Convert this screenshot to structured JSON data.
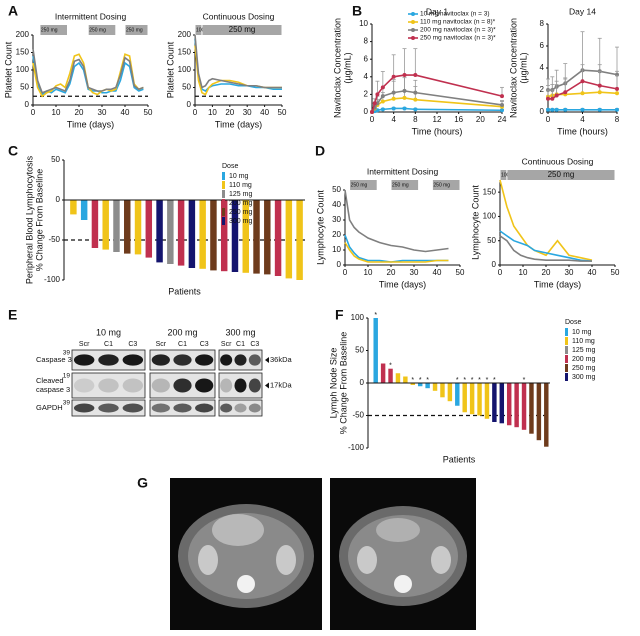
{
  "chart_data": [
    {
      "type": "line",
      "panel": "A",
      "title": "Intermittent Dosing",
      "y_label": "Platelet Count",
      "x_label": "Time (days)",
      "dose_bars": [
        {
          "label": "250 mg",
          "start": 3,
          "end": 15
        },
        {
          "label": "250 mg",
          "start": 24,
          "end": 36
        },
        {
          "label": "250 mg",
          "start": 40,
          "end": 50
        }
      ],
      "x": [
        0,
        2,
        4,
        6,
        8,
        10,
        12,
        14,
        16,
        18,
        20,
        22,
        24,
        26,
        28,
        30,
        32,
        34,
        36,
        38,
        40,
        42,
        44,
        46,
        48
      ],
      "series": [
        {
          "color": "#2aa7e0",
          "values": [
            140,
            60,
            30,
            40,
            35,
            45,
            40,
            35,
            60,
            110,
            120,
            100,
            45,
            40,
            40,
            35,
            35,
            40,
            40,
            70,
            120,
            110,
            50,
            40,
            45
          ]
        },
        {
          "color": "#f0c419",
          "values": [
            120,
            50,
            25,
            35,
            40,
            55,
            60,
            50,
            90,
            140,
            145,
            120,
            50,
            35,
            30,
            40,
            45,
            40,
            45,
            95,
            145,
            140,
            60,
            45,
            50
          ]
        },
        {
          "color": "#7f7f7f",
          "values": [
            160,
            70,
            35,
            40,
            45,
            50,
            45,
            40,
            70,
            125,
            130,
            110,
            50,
            45,
            40,
            40,
            45,
            45,
            50,
            85,
            135,
            125,
            55,
            45,
            50
          ]
        }
      ],
      "xlim": [
        0,
        50
      ],
      "xticks": [
        0,
        10,
        20,
        30,
        40,
        50
      ],
      "ylim": [
        0,
        200
      ],
      "yticks": [
        0,
        50,
        100,
        150,
        200
      ],
      "threshold": 25
    },
    {
      "type": "line",
      "title": "Continuous Dosing",
      "y_label": "Platelet Count",
      "x_label": "Time (days)",
      "dose_bars": [
        {
          "label": "100 mg",
          "start": 0,
          "end": 4
        },
        {
          "label": "250 mg",
          "start": 4,
          "end": 50
        }
      ],
      "x": [
        0,
        2,
        4,
        6,
        8,
        10,
        15,
        20,
        25,
        30,
        35,
        40,
        45,
        50
      ],
      "series": [
        {
          "color": "#2aa7e0",
          "values": [
            190,
            80,
            45,
            40,
            50,
            55,
            60,
            60,
            55,
            55,
            50,
            50,
            45,
            45
          ]
        },
        {
          "color": "#f0c419",
          "values": [
            170,
            70,
            35,
            30,
            50,
            60,
            70,
            70,
            65,
            55,
            55,
            50,
            50,
            50
          ]
        },
        {
          "color": "#7f7f7f",
          "values": [
            200,
            90,
            50,
            55,
            70,
            75,
            70,
            65,
            60,
            55,
            55,
            50,
            50,
            50
          ]
        }
      ],
      "xlim": [
        0,
        50
      ],
      "xticks": [
        0,
        10,
        20,
        30,
        40,
        50
      ],
      "ylim": [
        0,
        200
      ],
      "yticks": [
        0,
        50,
        100,
        150,
        200
      ],
      "threshold": 25
    },
    {
      "type": "line",
      "panel": "B",
      "title": "Day 1",
      "y_label": [
        "Navitoclax Concentration",
        "(µg/mL)"
      ],
      "x_label": "Time (hours)",
      "markers": true,
      "legend": "upper right",
      "x": [
        0,
        0.5,
        1,
        2,
        4,
        6,
        8,
        24
      ],
      "series": [
        {
          "name": "10 mg navitoclax (n = 3)",
          "color": "#2aa7e0",
          "values": [
            0,
            0.1,
            0.2,
            0.3,
            0.4,
            0.4,
            0.3,
            0.2
          ],
          "errors": [
            0,
            0.05,
            0.1,
            0.1,
            0.1,
            0.1,
            0.1,
            0.1
          ]
        },
        {
          "name": "110 mg navitoclax (n = 8)*",
          "color": "#f0c419",
          "values": [
            0,
            0.4,
            0.8,
            1.2,
            1.5,
            1.6,
            1.4,
            0.6
          ],
          "errors": [
            0,
            0.3,
            0.6,
            1,
            2,
            2.5,
            1.5,
            0.6
          ]
        },
        {
          "name": "200 mg navitoclax (n = 3)*",
          "color": "#808080",
          "values": [
            0,
            0.5,
            1,
            1.8,
            2.2,
            2.4,
            2.2,
            0.8
          ],
          "errors": [
            0,
            0.3,
            0.8,
            1,
            1.5,
            1.5,
            1.4,
            0.5
          ]
        },
        {
          "name": "250 mg navitoclax (n = 3)*",
          "color": "#c0304f",
          "values": [
            0,
            1,
            2,
            2.8,
            4,
            4.2,
            4.2,
            1.8
          ],
          "errors": [
            0,
            0.5,
            1.5,
            1.8,
            2.5,
            3,
            3,
            1
          ]
        }
      ],
      "xlim": [
        0,
        24
      ],
      "xticks": [
        0,
        4,
        8,
        12,
        16,
        20,
        24
      ],
      "ylim": [
        0,
        10
      ],
      "yticks": [
        0,
        2,
        4,
        6,
        8,
        10
      ]
    },
    {
      "type": "line",
      "title": "Day 14",
      "y_label": [
        "Navitoclax Concentration",
        "(µg/mL)"
      ],
      "x_label": "Time (hours)",
      "markers": true,
      "x": [
        0,
        0.5,
        1,
        2,
        4,
        6,
        8
      ],
      "series": [
        {
          "color": "#2aa7e0",
          "values": [
            0.2,
            0.2,
            0.2,
            0.2,
            0.2,
            0.2,
            0.2
          ],
          "errors": [
            0.1,
            0.1,
            0.1,
            0.1,
            0.1,
            0.1,
            0.1
          ]
        },
        {
          "color": "#f0c419",
          "values": [
            1.4,
            1.5,
            1.6,
            1.6,
            1.7,
            1.8,
            1.7
          ],
          "errors": [
            1,
            1,
            1.2,
            1.5,
            2,
            2.5,
            2
          ]
        },
        {
          "color": "#808080",
          "values": [
            2,
            2,
            2.3,
            2.6,
            3.8,
            3.7,
            3.4
          ],
          "errors": [
            1,
            1.2,
            1.5,
            1.8,
            3.5,
            3,
            2.5
          ]
        },
        {
          "color": "#c0304f",
          "values": [
            1.2,
            1.2,
            1.5,
            1.8,
            2.8,
            2.4,
            2.1
          ],
          "errors": [
            0.8,
            0.8,
            1,
            1.2,
            1.5,
            1.3,
            1.2
          ]
        }
      ],
      "xlim": [
        0,
        8
      ],
      "xticks": [
        0,
        4,
        8
      ],
      "ylim": [
        0,
        8
      ],
      "yticks": [
        0,
        2,
        4,
        6,
        8
      ]
    },
    {
      "type": "bar",
      "panel": "C",
      "y_label": [
        "Peripheral Blood Lymphocytosis",
        "% Change From Baseline"
      ],
      "x_label": "Patients",
      "values": [
        -18,
        -25,
        -60,
        -62,
        -65,
        -67,
        -68,
        -72,
        -78,
        -80,
        -82,
        -85,
        -86,
        -88,
        -89,
        -90,
        -91,
        -92,
        -93,
        -95,
        -98,
        -100
      ],
      "colors": [
        "#f0c419",
        "#2aa7e0",
        "#c0304f",
        "#f0c419",
        "#8c8c8c",
        "#6e3b1c",
        "#f0c419",
        "#c0304f",
        "#14146e",
        "#8c8c8c",
        "#c0304f",
        "#14146e",
        "#f0c419",
        "#6e3b1c",
        "#c0304f",
        "#14146e",
        "#f0c419",
        "#6e3b1c",
        "#6e3b1c",
        "#c0304f",
        "#f0c419",
        "#f0c419"
      ],
      "ylim": [
        -100,
        50
      ],
      "yticks": [
        50,
        0,
        -50,
        -100
      ],
      "threshold": -50,
      "legend_title": "Dose",
      "legend": [
        {
          "name": "10 mg",
          "color": "#2aa7e0"
        },
        {
          "name": "110 mg",
          "color": "#f0c419"
        },
        {
          "name": "125 mg",
          "color": "#8c8c8c"
        },
        {
          "name": "200 mg",
          "color": "#c0304f"
        },
        {
          "name": "250 mg",
          "color": "#6e3b1c"
        },
        {
          "name": "300 mg",
          "color": "#14146e"
        }
      ]
    },
    {
      "type": "line",
      "panel": "D",
      "title": "Intermittent Dosing",
      "y_label": "Lymphocyte Count",
      "x_label": "Time (days)",
      "dose_bars": [
        {
          "label": "250 mg",
          "start": 2,
          "end": 14
        },
        {
          "label": "250 mg",
          "start": 20,
          "end": 32
        },
        {
          "label": "250 mg",
          "start": 38,
          "end": 50
        }
      ],
      "x": [
        0,
        2,
        4,
        6,
        8,
        10,
        15,
        20,
        25,
        30,
        35,
        40,
        45
      ],
      "series": [
        {
          "color": "#7f7f7f",
          "values": [
            50,
            30,
            25,
            22,
            20,
            18,
            15,
            13,
            12,
            10,
            9,
            10,
            11
          ]
        },
        {
          "color": "#2aa7e0",
          "values": [
            20,
            12,
            8,
            5,
            4,
            3,
            3,
            2,
            3,
            3,
            3,
            3,
            3
          ]
        },
        {
          "color": "#f0c419",
          "values": [
            15,
            10,
            6,
            4,
            3,
            2,
            2,
            2,
            2,
            2,
            2,
            3,
            3
          ]
        }
      ],
      "xlim": [
        0,
        50
      ],
      "xticks": [
        0,
        10,
        20,
        30,
        40,
        50
      ],
      "ylim": [
        0,
        50
      ],
      "yticks": [
        0,
        10,
        20,
        30,
        40,
        50
      ]
    },
    {
      "type": "line",
      "title": "Continuous Dosing",
      "y_label": "Lymphocyte Count",
      "x_label": "Time (days)",
      "dose_bars": [
        {
          "label": "100 mg",
          "start": 0,
          "end": 3
        },
        {
          "label": "250 mg",
          "start": 3,
          "end": 50
        }
      ],
      "x": [
        0,
        3,
        6,
        9,
        12,
        15,
        20,
        25,
        30,
        35,
        40
      ],
      "series": [
        {
          "color": "#f0c419",
          "values": [
            175,
            120,
            80,
            60,
            40,
            30,
            20,
            50,
            20,
            15,
            10
          ]
        },
        {
          "color": "#2aa7e0",
          "values": [
            70,
            60,
            50,
            45,
            40,
            30,
            25,
            20,
            15,
            10,
            8
          ]
        },
        {
          "color": "#7f7f7f",
          "values": [
            60,
            50,
            30,
            20,
            15,
            12,
            10,
            10,
            10,
            8,
            8
          ]
        }
      ],
      "xlim": [
        0,
        50
      ],
      "xticks": [
        0,
        10,
        20,
        30,
        40,
        50
      ],
      "ylim": [
        0,
        175
      ],
      "yticks": [
        0,
        50,
        100,
        150
      ]
    },
    {
      "type": "bar",
      "panel": "F",
      "y_label": [
        "Lymph Node Size",
        "% Change From Baseline"
      ],
      "x_label": "Patients",
      "values": [
        100,
        30,
        22,
        15,
        10,
        -3,
        -5,
        -8,
        -12,
        -22,
        -28,
        -35,
        -45,
        -48,
        -50,
        -55,
        -60,
        -62,
        -65,
        -68,
        -72,
        -78,
        -88,
        -98
      ],
      "colors": [
        "#2aa7e0",
        "#c0304f",
        "#c0304f",
        "#f0c419",
        "#f0c419",
        "#f0c419",
        "#2aa7e0",
        "#2aa7e0",
        "#f0c419",
        "#f0c419",
        "#f0c419",
        "#2aa7e0",
        "#f0c419",
        "#f0c419",
        "#f0c419",
        "#f0c419",
        "#14146e",
        "#14146e",
        "#c0304f",
        "#c0304f",
        "#c0304f",
        "#6e3b1c",
        "#6e3b1c",
        "#6e3b1c"
      ],
      "bar_notes": [
        "*",
        null,
        "*",
        null,
        null,
        "*",
        "*",
        "*",
        null,
        null,
        null,
        "*",
        "*",
        "*",
        "*",
        "*",
        "*",
        null,
        null,
        null,
        "*",
        null,
        null,
        null
      ],
      "ylim": [
        -100,
        100
      ],
      "yticks": [
        100,
        50,
        0,
        -50,
        -100
      ],
      "threshold": -50,
      "legend_title": "Dose",
      "legend": [
        {
          "name": "10 mg",
          "color": "#2aa7e0"
        },
        {
          "name": "110 mg",
          "color": "#f0c419"
        },
        {
          "name": "125 mg",
          "color": "#8c8c8c"
        },
        {
          "name": "200 mg",
          "color": "#c0304f"
        },
        {
          "name": "250 mg",
          "color": "#6e3b1c"
        },
        {
          "name": "300 mg",
          "color": "#14146e"
        }
      ]
    }
  ],
  "blot": {
    "panel": "E",
    "groups": [
      "10 mg",
      "200 mg",
      "300 mg"
    ],
    "lanes": [
      "Scr",
      "C1",
      "C3"
    ],
    "rows": [
      {
        "label": [
          "Caspase 3"
        ],
        "ladder": 39,
        "size": "36kDa"
      },
      {
        "label": [
          "Cleaved",
          "caspase 3"
        ],
        "ladder": 19,
        "size": "17kDa"
      },
      {
        "label": [
          "GAPDH"
        ],
        "ladder": 39
      }
    ]
  },
  "ct_scans": {
    "panel": "G"
  }
}
